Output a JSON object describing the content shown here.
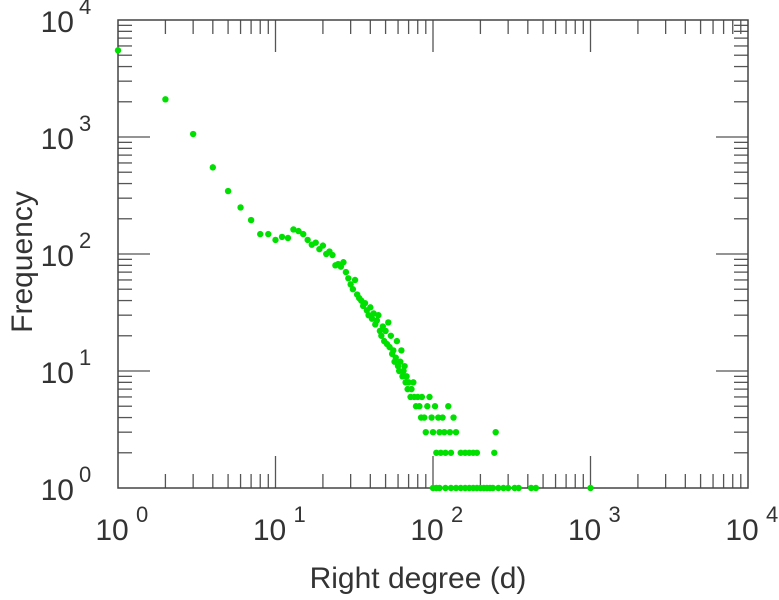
{
  "chart_data": {
    "type": "scatter",
    "xscale": "log",
    "yscale": "log",
    "xlabel": "Right degree (d)",
    "ylabel": "Frequency",
    "xlim": [
      1,
      10000
    ],
    "ylim": [
      1,
      10000
    ],
    "grid": false,
    "marker_color": "#00e000",
    "xticks": [
      {
        "base": "10",
        "exp": "0",
        "value": 1
      },
      {
        "base": "10",
        "exp": "1",
        "value": 10
      },
      {
        "base": "10",
        "exp": "2",
        "value": 100
      },
      {
        "base": "10",
        "exp": "3",
        "value": 1000
      },
      {
        "base": "10",
        "exp": "4",
        "value": 10000
      }
    ],
    "yticks": [
      {
        "base": "10",
        "exp": "0",
        "value": 1
      },
      {
        "base": "10",
        "exp": "1",
        "value": 10
      },
      {
        "base": "10",
        "exp": "2",
        "value": 100
      },
      {
        "base": "10",
        "exp": "3",
        "value": 1000
      },
      {
        "base": "10",
        "exp": "4",
        "value": 10000
      }
    ],
    "series": [
      {
        "name": "Frequency",
        "x": [
          1,
          2,
          3,
          4,
          5,
          6,
          7,
          8,
          9,
          10,
          11,
          12,
          13,
          14,
          15,
          16,
          17,
          18,
          19,
          20,
          21,
          22,
          23,
          24,
          25,
          26,
          27,
          28,
          29,
          30,
          31,
          32,
          33,
          34,
          35,
          36,
          37,
          38,
          39,
          40,
          41,
          42,
          43,
          44,
          45,
          46,
          47,
          48,
          49,
          50,
          51,
          52,
          53,
          54,
          55,
          56,
          57,
          58,
          59,
          60,
          61,
          62,
          63,
          64,
          65,
          66,
          67,
          68,
          69,
          70,
          72,
          73,
          75,
          76,
          78,
          80,
          82,
          84,
          85,
          88,
          90,
          92,
          95,
          98,
          100,
          103,
          105,
          108,
          110,
          112,
          115,
          118,
          120,
          125,
          128,
          130,
          135,
          140,
          150,
          160,
          170,
          180,
          190,
          245,
          250,
          100,
          105,
          110,
          120,
          130,
          140,
          150,
          160,
          170,
          180,
          190,
          200,
          210,
          220,
          230,
          240,
          260,
          280,
          300,
          330,
          350,
          420,
          450,
          1000
        ],
        "y": [
          5500,
          2100,
          1060,
          550,
          345,
          250,
          195,
          148,
          148,
          132,
          140,
          137,
          162,
          157,
          148,
          132,
          120,
          125,
          110,
          118,
          100,
          105,
          98,
          80,
          82,
          78,
          85,
          70,
          62,
          55,
          50,
          60,
          45,
          42,
          40,
          36,
          38,
          33,
          30,
          35,
          28,
          31,
          25,
          27,
          30,
          22,
          20,
          24,
          18,
          22,
          17,
          26,
          16,
          20,
          14,
          15,
          12,
          13,
          18,
          11,
          10,
          12,
          15,
          9,
          10,
          11,
          8,
          9,
          7,
          8,
          6,
          7,
          8,
          6,
          5,
          6,
          5,
          4,
          6,
          4,
          3,
          5,
          6,
          4,
          3,
          5,
          2,
          4,
          3,
          2,
          4,
          3,
          2,
          5,
          3,
          2,
          4,
          3,
          2,
          2,
          2,
          2,
          2,
          2,
          3,
          1,
          1,
          1,
          1,
          1,
          1,
          1,
          1,
          1,
          1,
          1,
          1,
          1,
          1,
          1,
          1,
          1,
          1,
          1,
          1,
          1,
          1,
          1,
          1
        ]
      }
    ]
  }
}
